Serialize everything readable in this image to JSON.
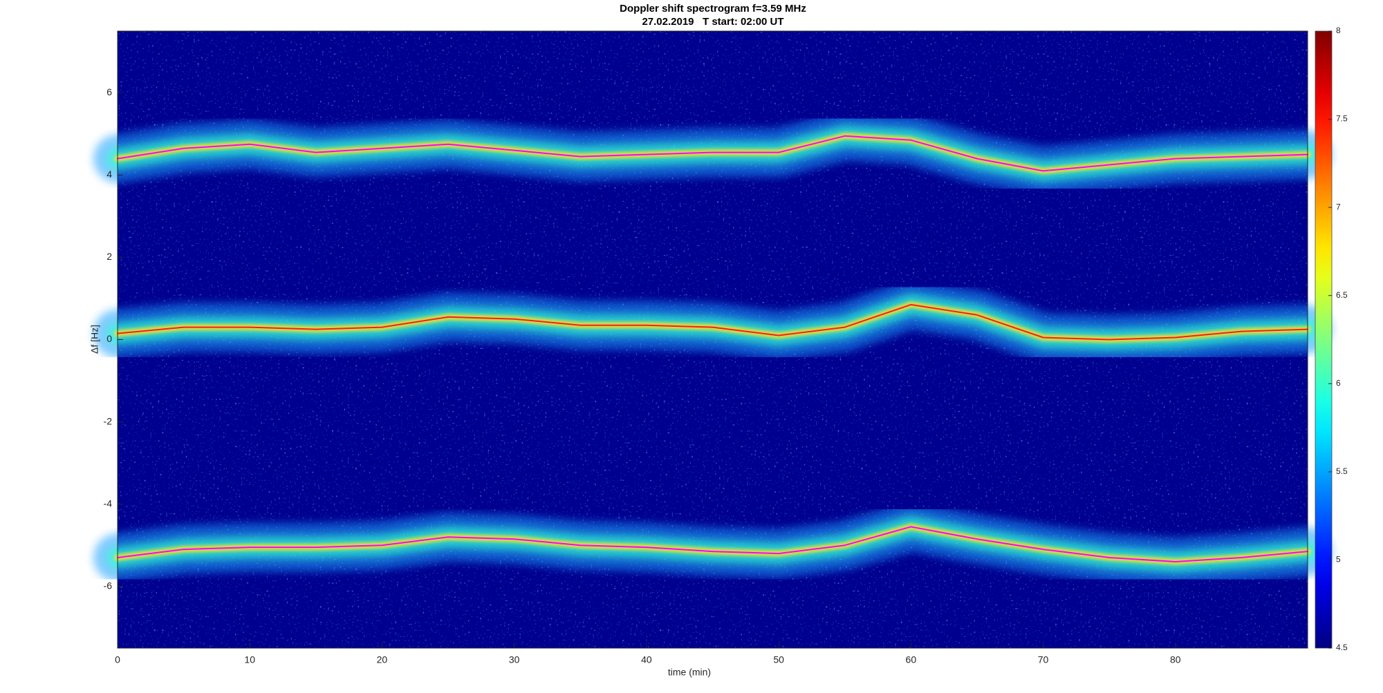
{
  "chart_data": {
    "type": "spectrogram",
    "title": "Doppler shift spectrogram f=3.59 MHz",
    "subtitle": "27.02.2019   T start: 02:00 UT",
    "x_label": "time (min)",
    "y_label": "Δf [Hz]",
    "xlim": [
      0,
      90
    ],
    "ylim": [
      -7.5,
      7.5
    ],
    "xticks": [
      0,
      10,
      20,
      30,
      40,
      50,
      60,
      70,
      80
    ],
    "yticks": [
      -6,
      -4,
      -2,
      0,
      2,
      4,
      6
    ],
    "colormap": "jet",
    "clim": [
      4.5,
      8
    ],
    "cticks": [
      4.5,
      5,
      5.5,
      6,
      6.5,
      7,
      7.5,
      8
    ],
    "x": [
      0,
      5,
      10,
      15,
      20,
      25,
      30,
      35,
      40,
      45,
      50,
      55,
      60,
      65,
      70,
      75,
      80,
      85,
      90
    ],
    "series": [
      {
        "color": "#ff00ff",
        "values": [
          4.4,
          4.65,
          4.75,
          4.55,
          4.65,
          4.75,
          4.6,
          4.45,
          4.5,
          4.55,
          4.55,
          4.95,
          4.85,
          4.4,
          4.1,
          4.25,
          4.4,
          4.45,
          4.5
        ]
      },
      {
        "color": "#ff1a1a",
        "values": [
          0.15,
          0.3,
          0.3,
          0.25,
          0.3,
          0.55,
          0.5,
          0.35,
          0.35,
          0.3,
          0.1,
          0.3,
          0.85,
          0.6,
          0.05,
          0.0,
          0.05,
          0.2,
          0.25
        ]
      },
      {
        "color": "#ff00ff",
        "values": [
          -5.3,
          -5.1,
          -5.05,
          -5.05,
          -5.0,
          -4.8,
          -4.85,
          -5.0,
          -5.05,
          -5.15,
          -5.2,
          -5.0,
          -4.55,
          -4.85,
          -5.1,
          -5.3,
          -5.4,
          -5.3,
          -5.15
        ]
      }
    ]
  }
}
